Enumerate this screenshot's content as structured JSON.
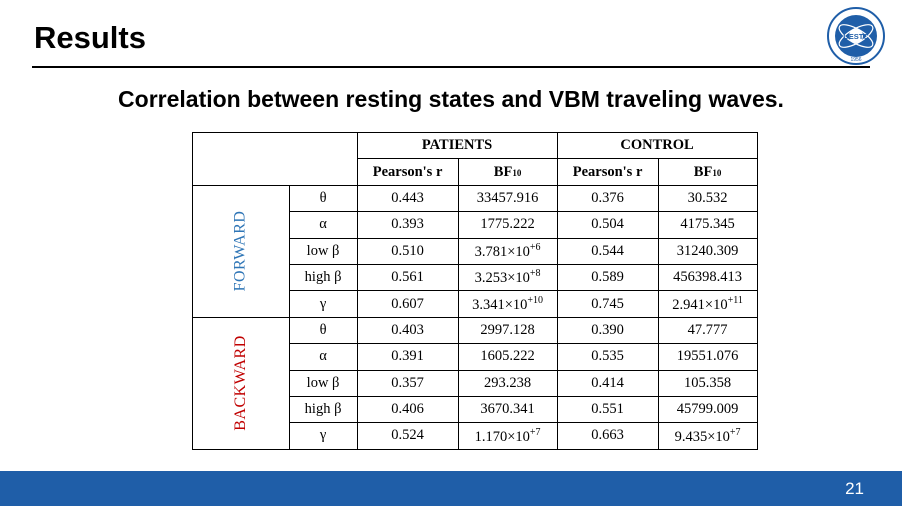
{
  "slide": {
    "title": "Results",
    "subtitle": "Correlation between resting states and VBM traveling waves.",
    "page_number": "21"
  },
  "logo": {
    "text": "UESTC",
    "year": "1956"
  },
  "table": {
    "groups": [
      "PATIENTS",
      "CONTROL"
    ],
    "col_pearson": "Pearson's r",
    "col_bf": "BF",
    "col_bf_sub": "10",
    "sections": [
      {
        "label": "FORWARD",
        "rows": [
          {
            "band": "θ",
            "p_r": "0.443",
            "p_bf": "33457.916",
            "c_r": "0.376",
            "c_bf": "30.532"
          },
          {
            "band": "α",
            "p_r": "0.393",
            "p_bf": "1775.222",
            "c_r": "0.504",
            "c_bf": "4175.345"
          },
          {
            "band": "low β",
            "p_r": "0.510",
            "p_bf": "3.781×10",
            "p_bf_exp": "+6",
            "c_r": "0.544",
            "c_bf": "31240.309"
          },
          {
            "band": "high β",
            "p_r": "0.561",
            "p_bf": "3.253×10",
            "p_bf_exp": "+8",
            "c_r": "0.589",
            "c_bf": "456398.413"
          },
          {
            "band": "γ",
            "p_r": "0.607",
            "p_bf": "3.341×10",
            "p_bf_exp": "+10",
            "c_r": "0.745",
            "c_bf": "2.941×10",
            "c_bf_exp": "+11"
          }
        ]
      },
      {
        "label": "BACKWARD",
        "rows": [
          {
            "band": "θ",
            "p_r": "0.403",
            "p_bf": "2997.128",
            "c_r": "0.390",
            "c_bf": "47.777"
          },
          {
            "band": "α",
            "p_r": "0.391",
            "p_bf": "1605.222",
            "c_r": "0.535",
            "c_bf": "19551.076"
          },
          {
            "band": "low β",
            "p_r": "0.357",
            "p_bf": "293.238",
            "c_r": "0.414",
            "c_bf": "105.358"
          },
          {
            "band": "high β",
            "p_r": "0.406",
            "p_bf": "3670.341",
            "c_r": "0.551",
            "c_bf": "45799.009"
          },
          {
            "band": "γ",
            "p_r": "0.524",
            "p_bf": "1.170×10",
            "p_bf_exp": "+7",
            "c_r": "0.663",
            "c_bf": "9.435×10",
            "c_bf_exp": "+7"
          }
        ]
      }
    ]
  },
  "colors": {
    "forward": "#2e75b6",
    "backward": "#c00000",
    "footer": "#1f5ea8"
  }
}
